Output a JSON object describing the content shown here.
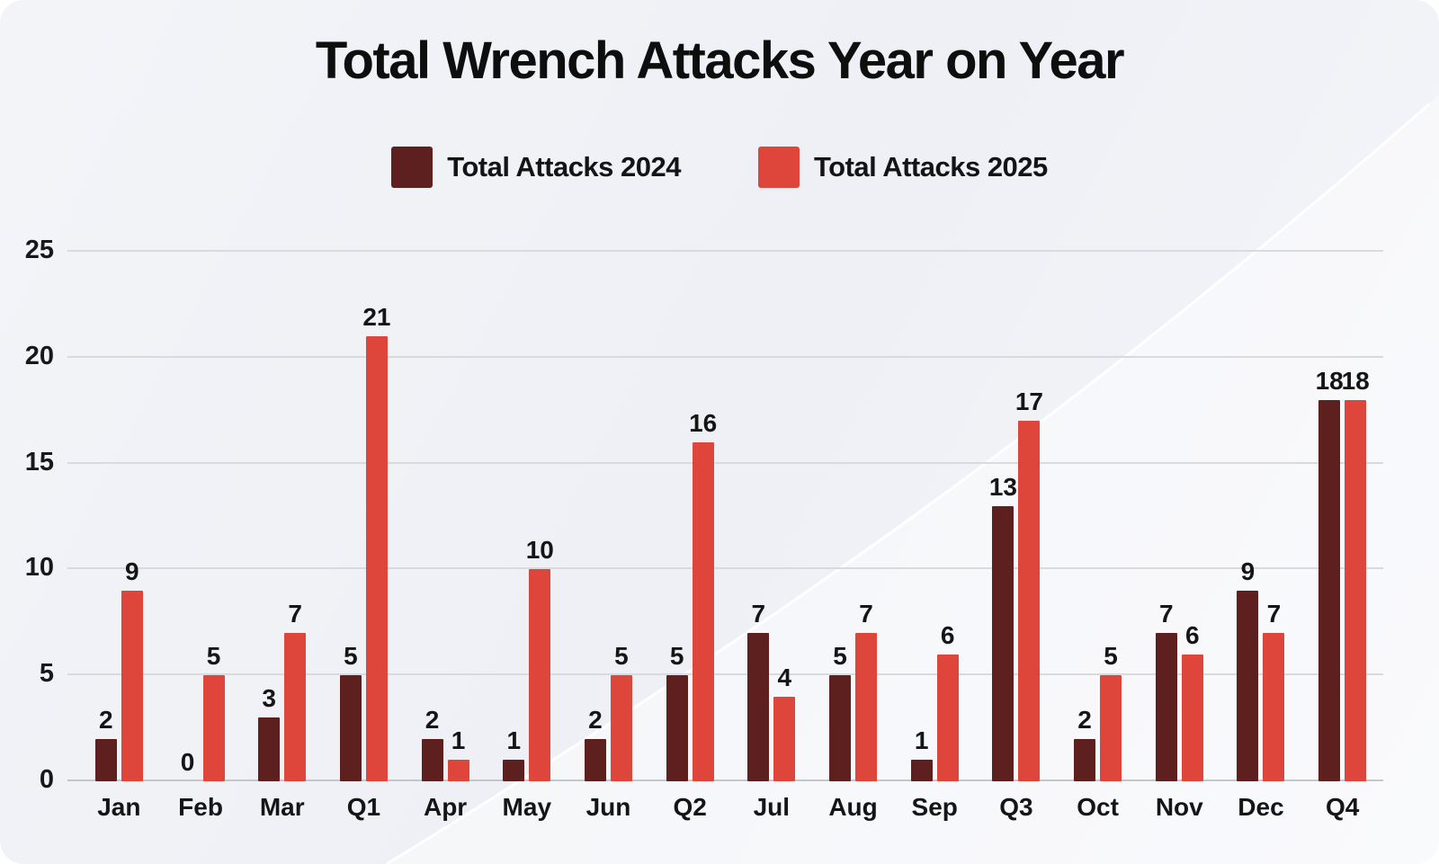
{
  "chart_data": {
    "type": "bar",
    "title": "Total Wrench Attacks Year on Year",
    "categories": [
      "Jan",
      "Feb",
      "Mar",
      "Q1",
      "Apr",
      "May",
      "Jun",
      "Q2",
      "Jul",
      "Aug",
      "Sep",
      "Q3",
      "Oct",
      "Nov",
      "Dec",
      "Q4"
    ],
    "series": [
      {
        "name": "Total Attacks 2024",
        "color": "#5e1f1f",
        "values": [
          2,
          0,
          3,
          5,
          2,
          1,
          2,
          5,
          7,
          5,
          1,
          13,
          2,
          7,
          9,
          18
        ]
      },
      {
        "name": "Total Attacks 2025",
        "color": "#de453b",
        "values": [
          9,
          5,
          7,
          21,
          1,
          10,
          5,
          16,
          4,
          7,
          6,
          17,
          5,
          6,
          7,
          18
        ]
      }
    ],
    "xlabel": "",
    "ylabel": "",
    "ylim": [
      0,
      25
    ],
    "yticks": [
      0,
      5,
      10,
      15,
      20,
      25
    ],
    "grid": true,
    "legend_position": "top",
    "value_labels": true
  },
  "colors": {
    "card_background": "#f1f3f7",
    "gridline": "#d8dade",
    "baseline": "#c4c6cb",
    "text": "#151515"
  }
}
